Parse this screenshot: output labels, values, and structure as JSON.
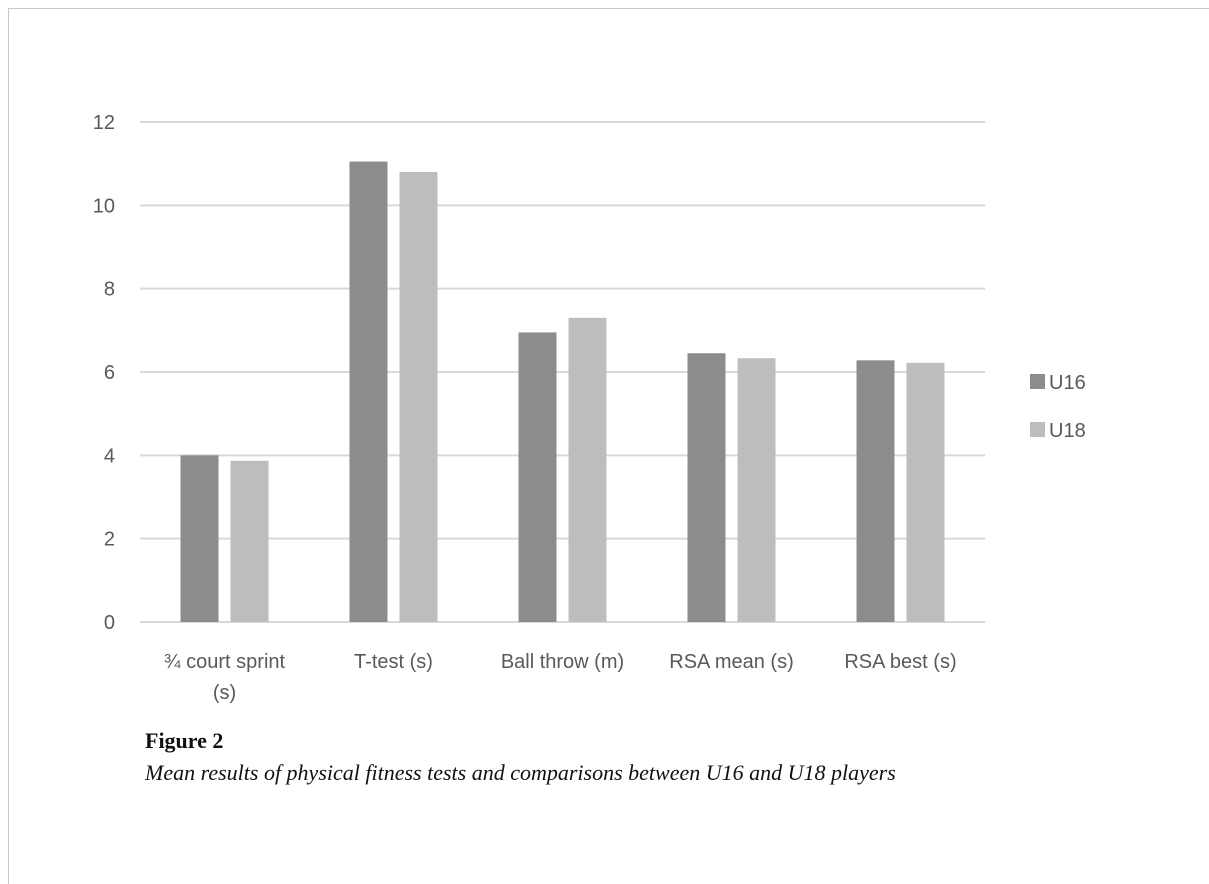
{
  "colors": {
    "U16": "#8c8c8c",
    "U18": "#bdbdbd",
    "grid": "#d9d9d9",
    "text": "#595959"
  },
  "caption": {
    "label": "Figure 2",
    "text": "Mean results of physical fitness tests and comparisons between U16 and U18 players"
  },
  "chart_data": {
    "type": "bar",
    "title": "",
    "xlabel": "",
    "ylabel": "",
    "ylim": [
      0,
      12
    ],
    "yticks": [
      0,
      2,
      4,
      6,
      8,
      10,
      12
    ],
    "grid": true,
    "legend_position": "right",
    "categories": [
      [
        "¾ court sprint",
        "(s)"
      ],
      [
        "T-test (s)"
      ],
      [
        "Ball throw  (m)"
      ],
      [
        "RSA mean (s)"
      ],
      [
        "RSA best (s)"
      ]
    ],
    "series": [
      {
        "name": "U16",
        "values": [
          4.0,
          11.05,
          6.95,
          6.45,
          6.28
        ]
      },
      {
        "name": "U18",
        "values": [
          3.87,
          10.8,
          7.3,
          6.33,
          6.22
        ]
      }
    ]
  }
}
